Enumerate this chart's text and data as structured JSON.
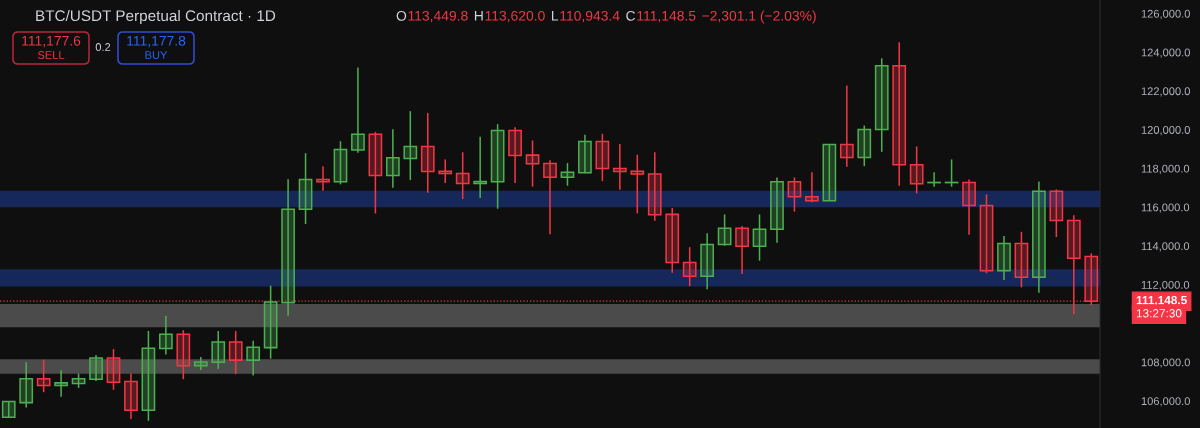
{
  "chart_data": {
    "type": "candlestick",
    "title": "BTC/USDT Perpetual Contract · 1D",
    "categories": [
      null,
      null,
      null,
      null,
      null,
      null,
      null,
      null,
      null,
      null,
      null,
      null,
      null,
      null,
      null,
      null,
      null,
      null,
      null,
      null,
      null,
      null,
      null,
      null,
      null,
      null,
      null,
      null,
      null,
      null,
      null,
      null,
      null,
      null,
      null,
      null,
      null,
      null,
      null,
      null,
      null,
      null,
      null,
      null,
      null,
      null,
      null,
      null,
      null,
      null,
      null,
      null,
      null,
      null,
      null,
      null,
      null,
      null,
      null,
      null,
      null,
      null,
      null
    ],
    "ohlc": [
      [
        105160,
        105970,
        105160,
        105970
      ],
      [
        105910,
        108000,
        105660,
        107140
      ],
      [
        107140,
        108130,
        106450,
        106790
      ],
      [
        106790,
        107600,
        106220,
        106930
      ],
      [
        106900,
        107410,
        106670,
        107140
      ],
      [
        107120,
        108370,
        107030,
        108220
      ],
      [
        108220,
        108680,
        106570,
        106960
      ],
      [
        107000,
        107410,
        105060,
        105520
      ],
      [
        105520,
        109610,
        104970,
        108720
      ],
      [
        108700,
        110390,
        108390,
        109440
      ],
      [
        109440,
        109650,
        107120,
        107820
      ],
      [
        107820,
        108270,
        107600,
        108010
      ],
      [
        108000,
        109610,
        107650,
        109040
      ],
      [
        109040,
        109610,
        107380,
        108100
      ],
      [
        108100,
        109110,
        107310,
        108770
      ],
      [
        108750,
        111950,
        108180,
        111110
      ],
      [
        111070,
        117450,
        110390,
        115900
      ],
      [
        115890,
        118790,
        115130,
        117430
      ],
      [
        117430,
        118120,
        116850,
        117310
      ],
      [
        117310,
        119410,
        117180,
        118980
      ],
      [
        118960,
        123210,
        118810,
        119770
      ],
      [
        119770,
        119890,
        115680,
        117640
      ],
      [
        117640,
        120030,
        117000,
        118550
      ],
      [
        118520,
        120960,
        117400,
        119140
      ],
      [
        119140,
        120860,
        116750,
        117850
      ],
      [
        117860,
        118470,
        117250,
        117740
      ],
      [
        117740,
        118840,
        116420,
        117230
      ],
      [
        117230,
        119640,
        116470,
        117330
      ],
      [
        117310,
        120290,
        115920,
        119960
      ],
      [
        119960,
        120130,
        117250,
        118670
      ],
      [
        118690,
        119450,
        117060,
        118240
      ],
      [
        118260,
        118430,
        114610,
        117550
      ],
      [
        117550,
        118280,
        117110,
        117810
      ],
      [
        117780,
        119740,
        117760,
        119390
      ],
      [
        119390,
        119790,
        117350,
        118000
      ],
      [
        118000,
        119260,
        116900,
        117850
      ],
      [
        117860,
        118710,
        115680,
        117710
      ],
      [
        117710,
        118840,
        115300,
        115610
      ],
      [
        115630,
        115960,
        112620,
        113150
      ],
      [
        113150,
        113940,
        111920,
        112430
      ],
      [
        112430,
        114650,
        111760,
        114080
      ],
      [
        114080,
        115630,
        114010,
        114910
      ],
      [
        114910,
        115030,
        112550,
        113980
      ],
      [
        113980,
        115630,
        113240,
        114860
      ],
      [
        114860,
        117540,
        114170,
        117310
      ],
      [
        117310,
        117540,
        115770,
        116540
      ],
      [
        116540,
        117810,
        116260,
        116330
      ],
      [
        116330,
        119240,
        116330,
        119240
      ],
      [
        119240,
        122280,
        118090,
        118570
      ],
      [
        118570,
        120220,
        118120,
        120010
      ],
      [
        120010,
        123690,
        118860,
        123300
      ],
      [
        123300,
        124520,
        117110,
        118190
      ],
      [
        118190,
        119140,
        116710,
        117210
      ],
      [
        117270,
        117810,
        117060,
        117280
      ],
      [
        117270,
        118470,
        117060,
        117280
      ],
      [
        117280,
        117430,
        114580,
        116090
      ],
      [
        116090,
        116660,
        112590,
        112720
      ],
      [
        112720,
        114510,
        112240,
        114130
      ],
      [
        114130,
        114730,
        111860,
        112380
      ],
      [
        112380,
        117330,
        111590,
        116820
      ],
      [
        116820,
        116920,
        114460,
        115320
      ],
      [
        115320,
        115580,
        110470,
        113360
      ],
      [
        113449.8,
        113620.0,
        110943.4,
        111148.5
      ]
    ],
    "colors": [
      "#4caf50",
      "#4caf50",
      "#f23645",
      "#4caf50",
      "#4caf50",
      "#4caf50",
      "#f23645",
      "#f23645",
      "#4caf50",
      "#4caf50",
      "#f23645",
      "#4caf50",
      "#4caf50",
      "#f23645",
      "#4caf50",
      "#4caf50",
      "#4caf50",
      "#4caf50",
      "#f23645",
      "#4caf50",
      "#4caf50",
      "#f23645",
      "#4caf50",
      "#4caf50",
      "#f23645",
      "#f23645",
      "#f23645",
      "#4caf50",
      "#4caf50",
      "#f23645",
      "#f23645",
      "#f23645",
      "#4caf50",
      "#4caf50",
      "#f23645",
      "#f23645",
      "#f23645",
      "#f23645",
      "#f23645",
      "#f23645",
      "#4caf50",
      "#4caf50",
      "#f23645",
      "#4caf50",
      "#4caf50",
      "#f23645",
      "#f23645",
      "#4caf50",
      "#f23645",
      "#4caf50",
      "#4caf50",
      "#f23645",
      "#f23645",
      "#4caf50",
      "#4caf50",
      "#f23645",
      "#f23645",
      "#4caf50",
      "#f23645",
      "#4caf50",
      "#f23645",
      "#f23645",
      "#f23645"
    ],
    "ylim": [
      104600,
      126700
    ],
    "yticks": [
      {
        "value": 106000,
        "label": "106,000.0"
      },
      {
        "value": 108000,
        "label": "108,000.0"
      },
      {
        "value": 112000,
        "label": "112,000.0"
      },
      {
        "value": 114000,
        "label": "114,000.0"
      },
      {
        "value": 116000,
        "label": "116,000.0"
      },
      {
        "value": 118000,
        "label": "118,000.0"
      },
      {
        "value": 120000,
        "label": "120,000.0"
      },
      {
        "value": 122000,
        "label": "122,000.0"
      },
      {
        "value": 124000,
        "label": "124,000.0"
      },
      {
        "value": 126000,
        "label": "126,000.0"
      }
    ],
    "tick_labels": "y",
    "bands": [
      {
        "axis": "y",
        "from": 116000,
        "to": 116850,
        "color": "#16285a"
      },
      {
        "axis": "y",
        "from": 111900,
        "to": 112800,
        "color": "#16285a"
      },
      {
        "axis": "y",
        "from": 109800,
        "to": 111000,
        "color": "#4b4b4b"
      },
      {
        "axis": "y",
        "from": 107400,
        "to": 108150,
        "color": "#4b4b4b"
      }
    ],
    "ref_lines": [
      {
        "axis": "y",
        "value": 111148.5,
        "color": "#f23645",
        "line_style": "dotted"
      }
    ],
    "annotations": [
      "O",
      "113,449.8",
      "H",
      "113,620.0",
      "L",
      "110,943.4",
      "C",
      "111,148.5",
      "−2,301.1 (−2.03%)",
      "111,177.6",
      "SELL",
      "0.2",
      "111,177.8",
      "BUY",
      "111,148.5",
      "13:27:30"
    ]
  }
}
